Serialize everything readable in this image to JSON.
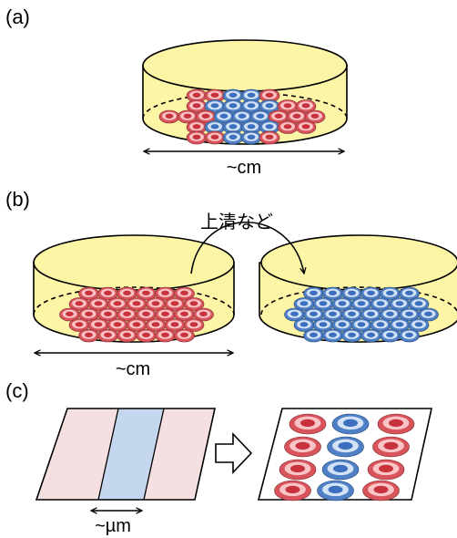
{
  "panels": {
    "a": {
      "label": "(a)",
      "dimension_label": "~cm"
    },
    "b": {
      "label": "(b)",
      "transfer_label": "上清など",
      "dimension_label": "~cm"
    },
    "c": {
      "label": "(c)",
      "dimension_label": "~µm"
    }
  },
  "colors": {
    "dish_fill": "#fdf5a6",
    "dish_stroke": "#000000",
    "cell_red_outer": "#d9535b",
    "cell_red_ring": "#f8c4c6",
    "cell_red_nucleus": "#c8323d",
    "cell_blue_outer": "#4f7fc4",
    "cell_blue_ring": "#d3e2f5",
    "cell_blue_nucleus": "#3c6fbd",
    "stripe_pink": "#f4dfe1",
    "stripe_blue": "#c5d7ee"
  }
}
